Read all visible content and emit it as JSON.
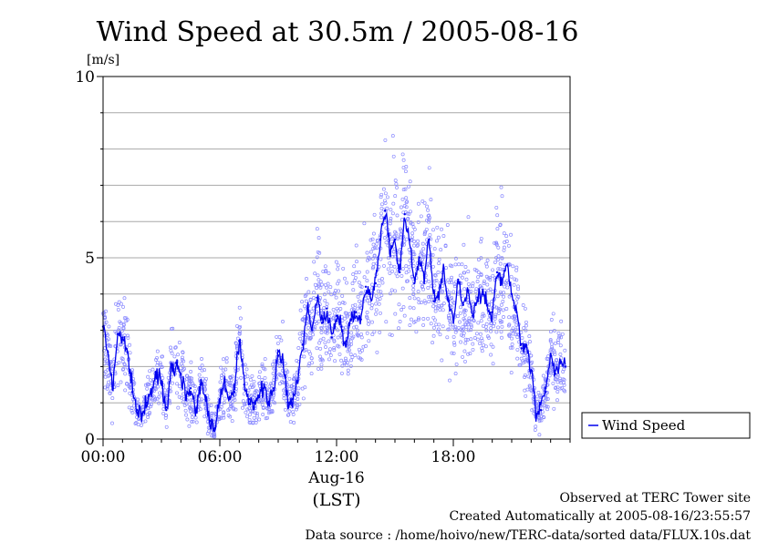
{
  "chart_data": {
    "type": "line",
    "title": "Wind Speed at 30.5m / 2005-08-16",
    "ylabel": "[m/s]",
    "xlabel": "(LST)",
    "date_label": "Aug-16",
    "ylim": [
      0,
      10
    ],
    "xlim_hours": [
      0,
      24
    ],
    "y_ticks": [
      "0",
      "5",
      "10"
    ],
    "y_tick_values": [
      0,
      5,
      10
    ],
    "x_ticks": [
      "00:00",
      "06:00",
      "12:00",
      "18:00"
    ],
    "x_tick_hours": [
      0,
      6,
      12,
      18
    ],
    "grid": true,
    "legend_position": "right",
    "series": [
      {
        "name": "Wind Speed",
        "color": "#0000ee",
        "x_hours": [
          0.0,
          0.25,
          0.5,
          0.75,
          1.0,
          1.25,
          1.5,
          1.75,
          2.0,
          2.25,
          2.5,
          2.75,
          3.0,
          3.25,
          3.5,
          3.75,
          4.0,
          4.25,
          4.5,
          4.75,
          5.0,
          5.25,
          5.5,
          5.75,
          6.0,
          6.25,
          6.5,
          6.75,
          7.0,
          7.25,
          7.5,
          7.75,
          8.0,
          8.25,
          8.5,
          8.75,
          9.0,
          9.25,
          9.5,
          9.75,
          10.0,
          10.25,
          10.5,
          10.75,
          11.0,
          11.25,
          11.5,
          11.75,
          12.0,
          12.25,
          12.5,
          12.75,
          13.0,
          13.25,
          13.5,
          13.75,
          14.0,
          14.25,
          14.5,
          14.75,
          15.0,
          15.25,
          15.5,
          15.75,
          16.0,
          16.25,
          16.5,
          16.75,
          17.0,
          17.25,
          17.5,
          17.75,
          18.0,
          18.25,
          18.5,
          18.75,
          19.0,
          19.25,
          19.5,
          19.75,
          20.0,
          20.25,
          20.5,
          20.75,
          21.0,
          21.25,
          21.5,
          21.75,
          22.0,
          22.25,
          22.5,
          22.75,
          23.0,
          23.25,
          23.5,
          23.75
        ],
        "values": [
          3.1,
          2.4,
          1.4,
          2.9,
          2.8,
          2.4,
          1.3,
          0.8,
          0.7,
          1.0,
          1.3,
          1.8,
          1.6,
          0.8,
          2.0,
          2.1,
          1.8,
          1.2,
          1.4,
          0.8,
          1.5,
          1.2,
          0.5,
          0.3,
          1.1,
          1.6,
          1.1,
          1.3,
          2.7,
          1.5,
          1.1,
          1.0,
          1.2,
          1.4,
          1.0,
          1.4,
          2.3,
          2.1,
          1.0,
          1.1,
          1.6,
          2.6,
          3.6,
          3.0,
          3.9,
          3.2,
          3.6,
          2.8,
          3.4,
          3.1,
          2.7,
          3.3,
          3.5,
          3.3,
          4.2,
          4.0,
          4.3,
          5.5,
          6.3,
          5.2,
          5.5,
          4.6,
          6.2,
          5.5,
          4.3,
          5.0,
          4.5,
          5.5,
          3.8,
          4.0,
          4.7,
          3.8,
          3.3,
          4.4,
          3.7,
          4.1,
          3.4,
          3.9,
          4.0,
          3.7,
          3.5,
          4.6,
          4.3,
          4.8,
          4.0,
          3.5,
          2.5,
          2.6,
          1.9,
          0.7,
          0.8,
          1.3,
          2.3,
          1.8,
          2.1,
          2.0
        ]
      }
    ]
  },
  "footer": {
    "line1": "Observed at TERC Tower site",
    "line2": "Created Automatically at 2005-08-16/23:55:57",
    "line3": "Data source : /home/hoivo/new/TERC-data/sorted  data/FLUX.10s.dat"
  }
}
